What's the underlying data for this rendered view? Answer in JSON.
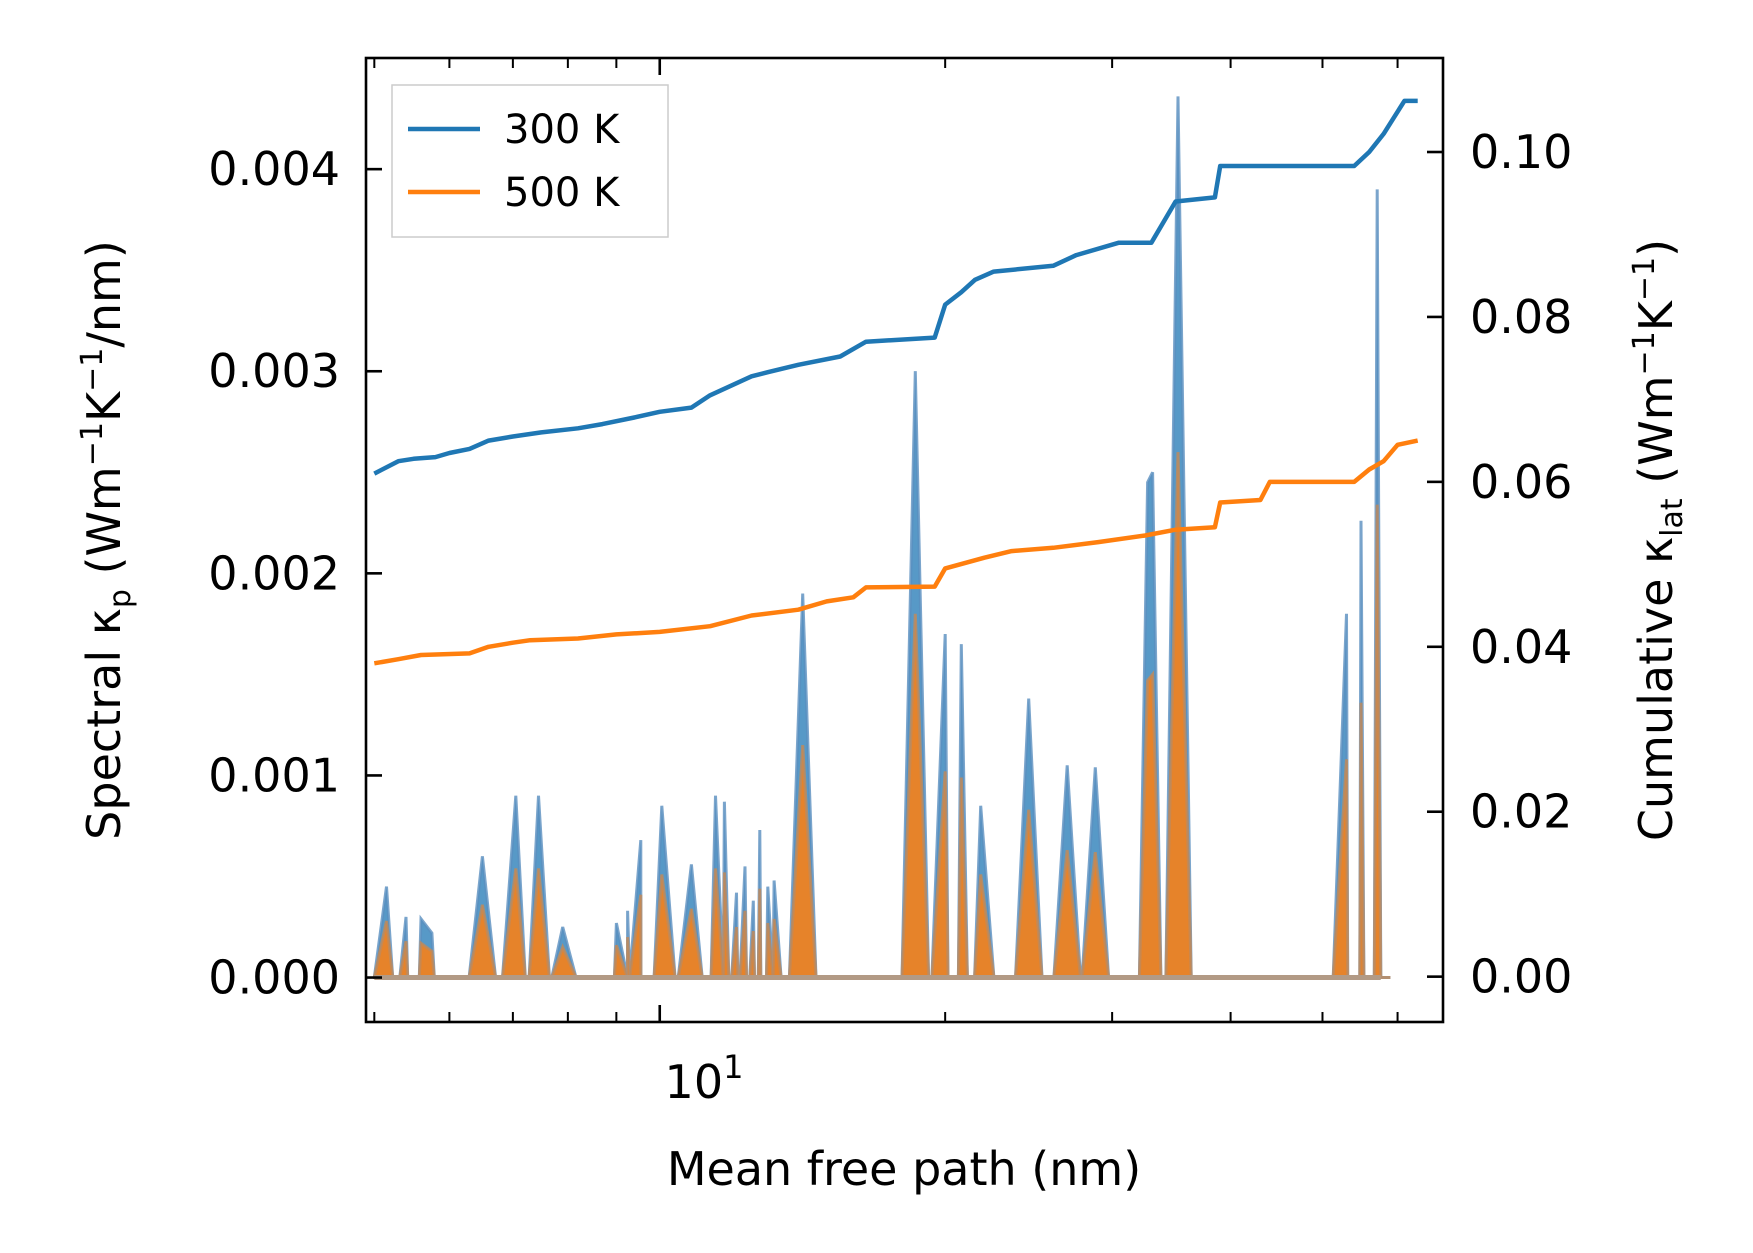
{
  "chart_data": {
    "type": "line",
    "xscale": "log",
    "xlabel": "Mean free path (nm)",
    "xlim": [
      4.9,
      67
    ],
    "x_major_tick_label": {
      "value": 10,
      "base": "10",
      "exponent": "1"
    },
    "ylabel_left": {
      "text": "Spectral κ",
      "sub": "p",
      "units_pre": " (Wm",
      "sup1": "−1",
      "units_mid": "K",
      "sup2": "−1",
      "units_post": "/nm)"
    },
    "ylim_left": [
      -0.00022,
      0.00455
    ],
    "yticks_left": [
      "0.000",
      "0.001",
      "0.002",
      "0.003",
      "0.004"
    ],
    "ylabel_right": {
      "text": "Cumulative κ",
      "sub": "lat",
      "units_pre": " (Wm",
      "sup1": "−1",
      "units_mid": "K",
      "sup2": "−1",
      "units_post": ")"
    },
    "ylim_right": [
      -0.0055,
      0.1114
    ],
    "yticks_right": [
      "0.00",
      "0.02",
      "0.04",
      "0.06",
      "0.08",
      "0.10"
    ],
    "legend": {
      "position": "top-left",
      "entries": [
        {
          "name": "300 K",
          "color": "#1f77b4"
        },
        {
          "name": "500 K",
          "color": "#ff7f0e"
        }
      ]
    },
    "cumulative": [
      {
        "name": "300 K",
        "color": "#1f77b4",
        "points": [
          [
            5.0,
            0.061
          ],
          [
            5.3,
            0.0625
          ],
          [
            5.5,
            0.0628
          ],
          [
            5.8,
            0.063
          ],
          [
            6.0,
            0.0635
          ],
          [
            6.3,
            0.064
          ],
          [
            6.6,
            0.065
          ],
          [
            7.0,
            0.0655
          ],
          [
            7.5,
            0.066
          ],
          [
            8.2,
            0.0665
          ],
          [
            8.7,
            0.067
          ],
          [
            9.4,
            0.0678
          ],
          [
            10.0,
            0.0685
          ],
          [
            10.8,
            0.069
          ],
          [
            11.3,
            0.0705
          ],
          [
            12.5,
            0.0728
          ],
          [
            13.0,
            0.0733
          ],
          [
            14.0,
            0.0742
          ],
          [
            15.5,
            0.0752
          ],
          [
            16.5,
            0.077
          ],
          [
            19.5,
            0.0775
          ],
          [
            20.0,
            0.0815
          ],
          [
            20.8,
            0.083
          ],
          [
            21.5,
            0.0845
          ],
          [
            22.5,
            0.0855
          ],
          [
            26.0,
            0.0862
          ],
          [
            27.5,
            0.0875
          ],
          [
            30.5,
            0.089
          ],
          [
            33.0,
            0.089
          ],
          [
            35.0,
            0.094
          ],
          [
            38.5,
            0.0945
          ],
          [
            39.0,
            0.0983
          ],
          [
            54.0,
            0.0983
          ],
          [
            56.0,
            0.1
          ],
          [
            58.0,
            0.1022
          ],
          [
            61.0,
            0.1062
          ],
          [
            63.0,
            0.1062
          ]
        ]
      },
      {
        "name": "500 K",
        "color": "#ff7f0e",
        "points": [
          [
            5.0,
            0.038
          ],
          [
            5.3,
            0.0385
          ],
          [
            5.6,
            0.039
          ],
          [
            6.3,
            0.0392
          ],
          [
            6.6,
            0.04
          ],
          [
            7.0,
            0.0405
          ],
          [
            7.3,
            0.0408
          ],
          [
            8.2,
            0.041
          ],
          [
            9.0,
            0.0415
          ],
          [
            10.0,
            0.0418
          ],
          [
            11.3,
            0.0425
          ],
          [
            12.5,
            0.0438
          ],
          [
            14.0,
            0.0445
          ],
          [
            15.0,
            0.0455
          ],
          [
            16.0,
            0.046
          ],
          [
            16.5,
            0.0472
          ],
          [
            19.5,
            0.0473
          ],
          [
            20.0,
            0.0495
          ],
          [
            22.0,
            0.0508
          ],
          [
            23.5,
            0.0516
          ],
          [
            26.0,
            0.052
          ],
          [
            29.0,
            0.0527
          ],
          [
            32.5,
            0.0535
          ],
          [
            35.0,
            0.0542
          ],
          [
            38.5,
            0.0545
          ],
          [
            39.0,
            0.0575
          ],
          [
            43.0,
            0.0578
          ],
          [
            44.0,
            0.06
          ],
          [
            54.0,
            0.06
          ],
          [
            56.0,
            0.0615
          ],
          [
            58.0,
            0.0625
          ],
          [
            60.0,
            0.0645
          ],
          [
            63.0,
            0.065
          ]
        ]
      }
    ],
    "spectral": [
      {
        "name": "300 K",
        "color": "#1f77b4",
        "peaks": [
          [
            5.15,
            0.00045
          ],
          [
            5.4,
            0.0003
          ],
          [
            5.6,
            0.00029
          ],
          [
            5.75,
            0.00022
          ],
          [
            6.5,
            0.0006
          ],
          [
            7.05,
            0.0009
          ],
          [
            7.45,
            0.0009
          ],
          [
            7.9,
            0.00025
          ],
          [
            9.0,
            0.00027
          ],
          [
            9.25,
            0.00033
          ],
          [
            9.55,
            0.00068
          ],
          [
            10.05,
            0.00085
          ],
          [
            10.8,
            0.00056
          ],
          [
            11.45,
            0.0009
          ],
          [
            11.7,
            0.00087
          ],
          [
            12.05,
            0.00042
          ],
          [
            12.3,
            0.00055
          ],
          [
            12.55,
            0.00038
          ],
          [
            12.75,
            0.00073
          ],
          [
            13.0,
            0.00045
          ],
          [
            13.2,
            0.00048
          ],
          [
            14.15,
            0.0019
          ],
          [
            18.6,
            0.003
          ],
          [
            20.0,
            0.0017
          ],
          [
            20.8,
            0.00165
          ],
          [
            21.8,
            0.00085
          ],
          [
            24.5,
            0.00138
          ],
          [
            26.9,
            0.00105
          ],
          [
            28.8,
            0.00104
          ],
          [
            32.7,
            0.00245
          ],
          [
            33.1,
            0.0025
          ],
          [
            35.2,
            0.00436
          ],
          [
            53.0,
            0.0018
          ],
          [
            54.9,
            0.00226
          ],
          [
            57.1,
            0.0039
          ]
        ]
      },
      {
        "name": "500 K",
        "color": "#ff7f0e",
        "peaks": [
          [
            5.15,
            0.00028
          ],
          [
            5.4,
            0.00018
          ],
          [
            5.6,
            0.00017
          ],
          [
            5.75,
            0.00013
          ],
          [
            6.5,
            0.00036
          ],
          [
            7.05,
            0.00054
          ],
          [
            7.45,
            0.00054
          ],
          [
            7.9,
            0.00015
          ],
          [
            9.0,
            0.00016
          ],
          [
            9.25,
            0.0002
          ],
          [
            9.55,
            0.00041
          ],
          [
            10.05,
            0.00051
          ],
          [
            10.8,
            0.00034
          ],
          [
            11.45,
            0.00054
          ],
          [
            11.7,
            0.00052
          ],
          [
            12.05,
            0.00025
          ],
          [
            12.3,
            0.00033
          ],
          [
            12.55,
            0.00023
          ],
          [
            12.75,
            0.00044
          ],
          [
            13.0,
            0.00027
          ],
          [
            13.2,
            0.00029
          ],
          [
            14.15,
            0.00115
          ],
          [
            18.6,
            0.0018
          ],
          [
            20.0,
            0.00102
          ],
          [
            20.8,
            0.00099
          ],
          [
            21.8,
            0.00051
          ],
          [
            24.5,
            0.00083
          ],
          [
            26.9,
            0.00063
          ],
          [
            28.8,
            0.00062
          ],
          [
            32.7,
            0.00147
          ],
          [
            33.1,
            0.0015
          ],
          [
            35.2,
            0.0026
          ],
          [
            53.0,
            0.00108
          ],
          [
            54.9,
            0.00136
          ],
          [
            57.1,
            0.00234
          ]
        ]
      }
    ]
  }
}
